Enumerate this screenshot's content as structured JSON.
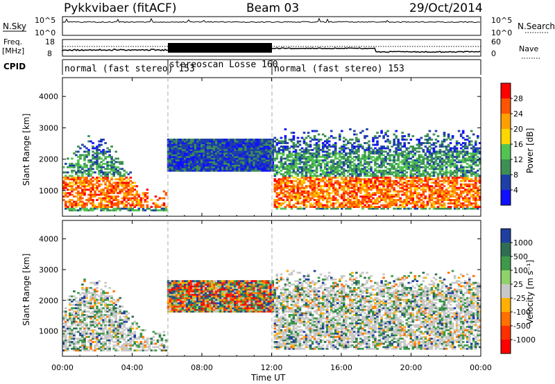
{
  "header": {
    "station": "Pykkvibaer (fitACF)",
    "beam": "Beam 03",
    "date": "29/Oct/2014"
  },
  "top_panels": {
    "nsky_label": "N.Sky",
    "nsearch_label": "N.Search",
    "freq_label": "Freq.",
    "freq_unit": "[MHz]",
    "nave_label": "Nave",
    "cpid_label": "CPID",
    "nsky_ticks": [
      "10^5",
      "10^0"
    ],
    "nsearch_ticks": [
      "10^5",
      "10^0"
    ],
    "freq_ticks": [
      "18",
      "8"
    ],
    "nave_ticks": [
      "60",
      "0"
    ]
  },
  "cpid_segments": [
    {
      "label": "normal (fast stereo) 153",
      "start_hour": 0,
      "end_hour": 6
    },
    {
      "label": "stereoscan Losse 160",
      "start_hour": 6,
      "end_hour": 12
    },
    {
      "label": "normal (fast stereo) 153",
      "start_hour": 12,
      "end_hour": 24
    }
  ],
  "axes": {
    "xlabel": "Time UT",
    "ylabel": "Slant Range [km]",
    "x_ticks": [
      "00:00",
      "04:00",
      "08:00",
      "12:00",
      "16:00",
      "20:00",
      "00:00"
    ],
    "y_ticks": [
      "4000",
      "3000",
      "2000",
      "1000"
    ]
  },
  "colorbars": {
    "power": {
      "label": "Power [dB]",
      "ticks": [
        "28",
        "24",
        "20",
        "16",
        "12",
        "8",
        "4"
      ],
      "colors": [
        "#ff0000",
        "#ff5500",
        "#ffa000",
        "#ffd700",
        "#52c452",
        "#3d8f55",
        "#1e3fa8",
        "#1010ff"
      ]
    },
    "velocity": {
      "label": "Velocity [m s⁻¹]",
      "ticks": [
        "1000",
        "500",
        "100",
        "25",
        "-25",
        "-100",
        "-500",
        "-1000"
      ],
      "colors": [
        "#1f3fa0",
        "#2e6f52",
        "#3e9a4a",
        "#8fd16a",
        "#c8c8c8",
        "#ffb000",
        "#ff7000",
        "#ff3000",
        "#ff0000"
      ]
    }
  },
  "chart_data": [
    {
      "type": "heatmap",
      "title": "Power",
      "xlabel": "Time UT",
      "ylabel": "Slant Range [km]",
      "xlim": [
        0,
        24
      ],
      "ylim": [
        180,
        4600
      ],
      "colorbar_label": "Power [dB]",
      "colorbar_range": [
        0,
        32
      ],
      "grid": false
    },
    {
      "type": "heatmap",
      "title": "Velocity",
      "xlabel": "Time UT",
      "ylabel": "Slant Range [km]",
      "xlim": [
        0,
        24
      ],
      "ylim": [
        180,
        4600
      ],
      "colorbar_label": "Velocity [m s⁻¹]",
      "colorbar_range": [
        -1000,
        1000
      ],
      "grid": false
    }
  ]
}
